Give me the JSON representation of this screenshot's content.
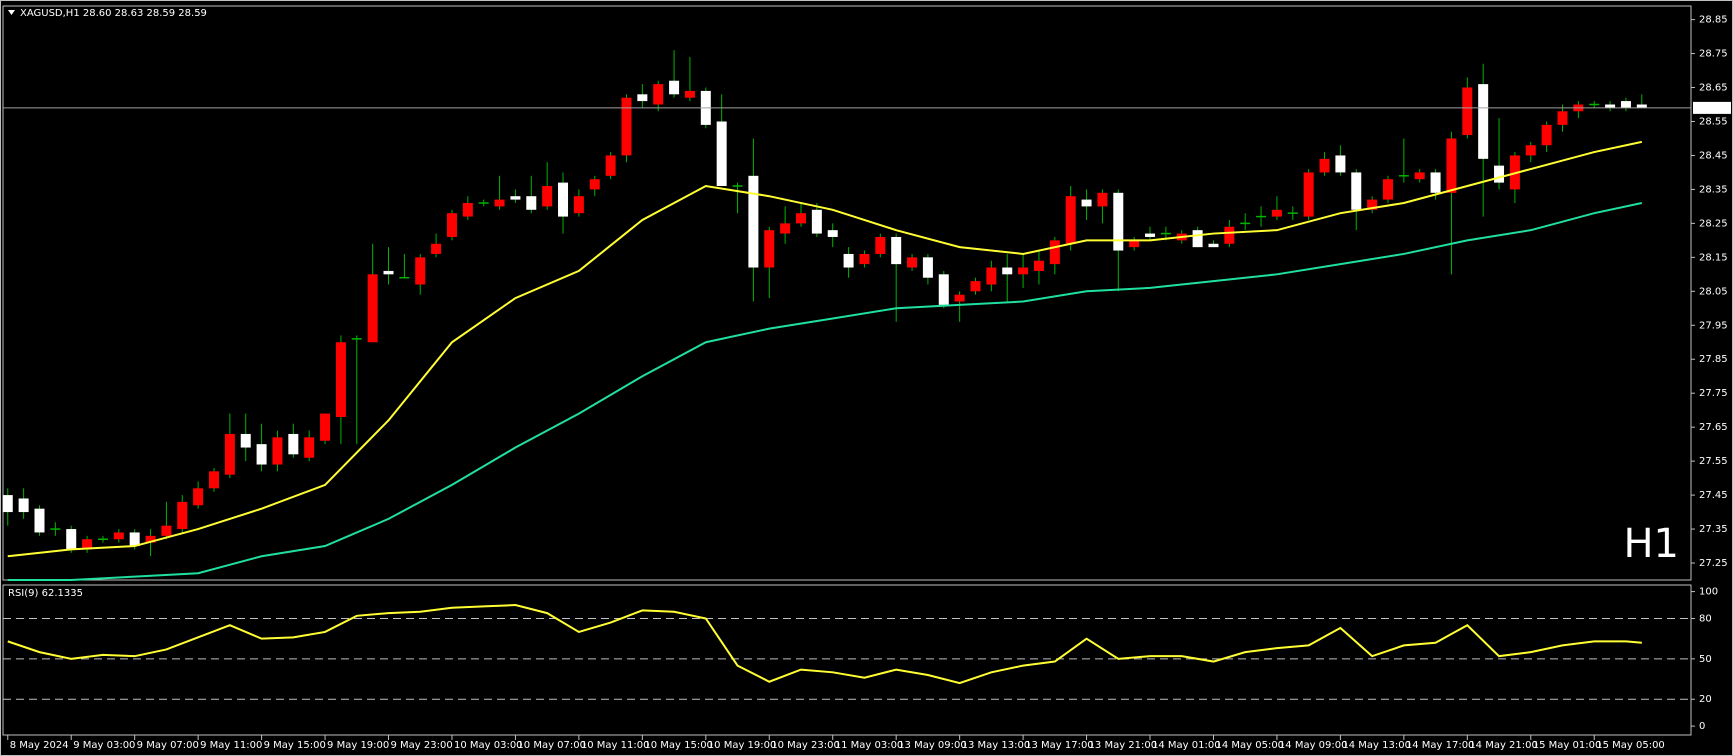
{
  "chart_data": [
    {
      "type": "candlestick",
      "title": "XAGUSD,H1  28.60 28.63 28.59 28.59",
      "watermark": "H1",
      "watermark_color": "#e00000",
      "up_color": "#ff0000",
      "down_color": "#ffffff",
      "wick_color": "#00b400",
      "ohlc": [
        [
          27.45,
          27.47,
          27.36,
          27.4
        ],
        [
          27.44,
          27.47,
          27.38,
          27.4
        ],
        [
          27.41,
          27.42,
          27.33,
          27.34
        ],
        [
          27.35,
          27.37,
          27.33,
          27.35
        ],
        [
          27.35,
          27.36,
          27.28,
          27.29
        ],
        [
          27.29,
          27.33,
          27.28,
          27.32
        ],
        [
          27.32,
          27.33,
          27.31,
          27.32
        ],
        [
          27.32,
          27.35,
          27.31,
          27.34
        ],
        [
          27.34,
          27.35,
          27.29,
          27.3
        ],
        [
          27.31,
          27.35,
          27.27,
          27.33
        ],
        [
          27.33,
          27.43,
          27.32,
          27.36
        ],
        [
          27.35,
          27.45,
          27.34,
          27.43
        ],
        [
          27.42,
          27.49,
          27.41,
          27.47
        ],
        [
          27.47,
          27.53,
          27.46,
          27.52
        ],
        [
          27.51,
          27.69,
          27.5,
          27.63
        ],
        [
          27.63,
          27.69,
          27.55,
          27.59
        ],
        [
          27.6,
          27.66,
          27.52,
          27.54
        ],
        [
          27.54,
          27.64,
          27.52,
          27.62
        ],
        [
          27.63,
          27.66,
          27.56,
          27.57
        ],
        [
          27.56,
          27.64,
          27.55,
          27.62
        ],
        [
          27.61,
          27.69,
          27.6,
          27.69
        ],
        [
          27.68,
          27.92,
          27.6,
          27.9
        ],
        [
          27.91,
          27.92,
          27.6,
          27.91
        ],
        [
          27.9,
          28.19,
          27.9,
          28.1
        ],
        [
          28.11,
          28.18,
          28.07,
          28.1
        ],
        [
          28.09,
          28.16,
          28.09,
          28.09
        ],
        [
          28.07,
          28.16,
          28.04,
          28.15
        ],
        [
          28.16,
          28.22,
          28.15,
          28.19
        ],
        [
          28.21,
          28.29,
          28.2,
          28.28
        ],
        [
          28.27,
          28.33,
          28.26,
          28.31
        ],
        [
          28.31,
          28.32,
          28.3,
          28.31
        ],
        [
          28.3,
          28.39,
          28.29,
          28.32
        ],
        [
          28.33,
          28.35,
          28.31,
          28.32
        ],
        [
          28.33,
          28.39,
          28.28,
          28.29
        ],
        [
          28.3,
          28.43,
          28.29,
          28.36
        ],
        [
          28.37,
          28.4,
          28.22,
          28.27
        ],
        [
          28.28,
          28.35,
          28.27,
          28.33
        ],
        [
          28.35,
          28.39,
          28.33,
          28.38
        ],
        [
          28.39,
          28.46,
          28.38,
          28.45
        ],
        [
          28.45,
          28.63,
          28.43,
          28.62
        ],
        [
          28.63,
          28.66,
          28.59,
          28.61
        ],
        [
          28.6,
          28.67,
          28.58,
          28.66
        ],
        [
          28.67,
          28.76,
          28.62,
          28.63
        ],
        [
          28.62,
          28.74,
          28.61,
          28.64
        ],
        [
          28.64,
          28.65,
          28.53,
          28.54
        ],
        [
          28.55,
          28.63,
          28.36,
          28.36
        ],
        [
          28.36,
          28.37,
          28.28,
          28.36
        ],
        [
          28.39,
          28.5,
          28.02,
          28.12
        ],
        [
          28.12,
          28.24,
          28.03,
          28.23
        ],
        [
          28.22,
          28.3,
          28.19,
          28.25
        ],
        [
          28.25,
          28.31,
          28.24,
          28.28
        ],
        [
          28.29,
          28.31,
          28.21,
          28.22
        ],
        [
          28.23,
          28.25,
          28.18,
          28.21
        ],
        [
          28.16,
          28.18,
          28.09,
          28.12
        ],
        [
          28.13,
          28.17,
          28.12,
          28.16
        ],
        [
          28.16,
          28.22,
          28.15,
          28.21
        ],
        [
          28.21,
          28.22,
          27.96,
          28.13
        ],
        [
          28.12,
          28.16,
          28.11,
          28.15
        ],
        [
          28.15,
          28.16,
          28.07,
          28.09
        ],
        [
          28.1,
          28.11,
          28.0,
          28.01
        ],
        [
          28.02,
          28.05,
          27.96,
          28.04
        ],
        [
          28.05,
          28.09,
          28.04,
          28.08
        ],
        [
          28.07,
          28.14,
          28.05,
          28.12
        ],
        [
          28.12,
          28.16,
          28.02,
          28.1
        ],
        [
          28.1,
          28.16,
          28.06,
          28.12
        ],
        [
          28.11,
          28.17,
          28.07,
          28.14
        ],
        [
          28.13,
          28.21,
          28.1,
          28.2
        ],
        [
          28.19,
          28.36,
          28.17,
          28.33
        ],
        [
          28.32,
          28.35,
          28.26,
          28.3
        ],
        [
          28.3,
          28.35,
          28.25,
          28.34
        ],
        [
          28.34,
          28.35,
          28.05,
          28.17
        ],
        [
          28.18,
          28.21,
          28.17,
          28.2
        ],
        [
          28.22,
          28.24,
          28.2,
          28.21
        ],
        [
          28.22,
          28.24,
          28.2,
          28.22
        ],
        [
          28.2,
          28.23,
          28.19,
          28.22
        ],
        [
          28.23,
          28.24,
          28.18,
          28.18
        ],
        [
          28.19,
          28.2,
          28.18,
          28.18
        ],
        [
          28.19,
          28.26,
          28.18,
          28.24
        ],
        [
          28.25,
          28.28,
          28.23,
          28.25
        ],
        [
          28.27,
          28.3,
          28.24,
          28.27
        ],
        [
          28.27,
          28.33,
          28.26,
          28.29
        ],
        [
          28.28,
          28.3,
          28.26,
          28.28
        ],
        [
          28.27,
          28.41,
          28.26,
          28.4
        ],
        [
          28.4,
          28.46,
          28.39,
          28.44
        ],
        [
          28.45,
          28.48,
          28.39,
          28.4
        ],
        [
          28.4,
          28.41,
          28.23,
          28.29
        ],
        [
          28.29,
          28.33,
          28.28,
          28.32
        ],
        [
          28.32,
          28.39,
          28.31,
          28.38
        ],
        [
          28.39,
          28.5,
          28.37,
          28.39
        ],
        [
          28.38,
          28.41,
          28.37,
          28.4
        ],
        [
          28.4,
          28.41,
          28.32,
          28.34
        ],
        [
          28.34,
          28.52,
          28.1,
          28.5
        ],
        [
          28.51,
          28.68,
          28.5,
          28.65
        ],
        [
          28.66,
          28.72,
          28.27,
          28.44
        ],
        [
          28.42,
          28.56,
          28.35,
          28.37
        ],
        [
          28.35,
          28.46,
          28.31,
          28.45
        ],
        [
          28.45,
          28.49,
          28.43,
          28.48
        ],
        [
          28.48,
          28.55,
          28.46,
          28.54
        ],
        [
          28.54,
          28.6,
          28.52,
          28.58
        ],
        [
          28.58,
          28.61,
          28.56,
          28.6
        ],
        [
          28.6,
          28.61,
          28.59,
          28.6
        ],
        [
          28.6,
          28.61,
          28.58,
          28.59
        ],
        [
          28.61,
          28.62,
          28.58,
          28.59
        ],
        [
          28.6,
          28.63,
          28.59,
          28.59
        ]
      ],
      "overlays": [
        {
          "color": "#ffff33",
          "x": [
            0,
            4,
            8,
            12,
            16,
            20,
            24,
            28,
            32,
            36,
            40,
            44,
            48,
            52,
            56,
            60,
            64,
            68,
            72,
            76,
            80,
            84,
            88,
            92,
            96,
            100,
            103
          ],
          "values": [
            27.27,
            27.29,
            27.3,
            27.35,
            27.41,
            27.48,
            27.67,
            27.9,
            28.03,
            28.11,
            28.26,
            28.36,
            28.33,
            28.29,
            28.23,
            28.18,
            28.16,
            28.2,
            28.2,
            28.22,
            28.23,
            28.28,
            28.31,
            28.36,
            28.41,
            28.46,
            28.49
          ]
        },
        {
          "color": "#20e0a0",
          "x": [
            0,
            4,
            8,
            12,
            16,
            20,
            24,
            28,
            32,
            36,
            40,
            44,
            48,
            52,
            56,
            60,
            64,
            68,
            72,
            76,
            80,
            84,
            88,
            92,
            96,
            100,
            103
          ],
          "values": [
            27.2,
            27.2,
            27.21,
            27.22,
            27.27,
            27.3,
            27.38,
            27.48,
            27.59,
            27.69,
            27.8,
            27.9,
            27.94,
            27.97,
            28.0,
            28.01,
            28.02,
            28.05,
            28.06,
            28.08,
            28.1,
            28.13,
            28.16,
            28.2,
            28.23,
            28.28,
            28.31
          ]
        }
      ],
      "current_price": 28.59,
      "xlim": [
        -0.3,
        106.1
      ],
      "ylim": [
        27.2,
        28.89
      ],
      "yticks": [
        28.85,
        28.75,
        28.65,
        28.55,
        28.45,
        28.35,
        28.25,
        28.15,
        28.05,
        27.95,
        27.85,
        27.75,
        27.65,
        27.55,
        27.45,
        27.35,
        27.25
      ],
      "xticks": [
        {
          "value": 0,
          "label": "8 May 2024"
        },
        {
          "value": 4,
          "label": "9 May 03:00"
        },
        {
          "value": 8,
          "label": "9 May 07:00"
        },
        {
          "value": 12,
          "label": "9 May 11:00"
        },
        {
          "value": 16,
          "label": "9 May 15:00"
        },
        {
          "value": 20,
          "label": "9 May 19:00"
        },
        {
          "value": 24,
          "label": "9 May 23:00"
        },
        {
          "value": 28,
          "label": "10 May 03:00"
        },
        {
          "value": 32,
          "label": "10 May 07:00"
        },
        {
          "value": 36,
          "label": "10 May 11:00"
        },
        {
          "value": 40,
          "label": "10 May 15:00"
        },
        {
          "value": 44,
          "label": "10 May 19:00"
        },
        {
          "value": 48,
          "label": "10 May 23:00"
        },
        {
          "value": 52,
          "label": "11 May 03:00"
        },
        {
          "value": 56,
          "label": "13 May 09:00"
        },
        {
          "value": 60,
          "label": "13 May 13:00"
        },
        {
          "value": 64,
          "label": "13 May 17:00"
        },
        {
          "value": 68,
          "label": "13 May 21:00"
        },
        {
          "value": 72,
          "label": "14 May 01:00"
        },
        {
          "value": 76,
          "label": "14 May 05:00"
        },
        {
          "value": 80,
          "label": "14 May 09:00"
        },
        {
          "value": 84,
          "label": "14 May 13:00"
        },
        {
          "value": 88,
          "label": "14 May 17:00"
        },
        {
          "value": 92,
          "label": "14 May 21:00"
        },
        {
          "value": 96,
          "label": "15 May 01:00"
        },
        {
          "value": 100,
          "label": "15 May 05:00"
        }
      ]
    },
    {
      "type": "line",
      "title": "RSI(9) 62.1335",
      "color": "#ffff33",
      "x": [
        0,
        2,
        4,
        6,
        8,
        10,
        12,
        14,
        16,
        18,
        20,
        22,
        24,
        26,
        28,
        30,
        32,
        34,
        36,
        38,
        40,
        42,
        44,
        46,
        48,
        50,
        52,
        54,
        56,
        58,
        60,
        62,
        64,
        66,
        68,
        70,
        72,
        74,
        76,
        78,
        80,
        82,
        84,
        86,
        88,
        90,
        92,
        94,
        96,
        98,
        100,
        102,
        103
      ],
      "values": [
        63,
        55,
        50,
        53,
        52,
        57,
        66,
        75,
        65,
        66,
        70,
        82,
        84,
        85,
        88,
        89,
        90,
        84,
        70,
        77,
        86,
        85,
        80,
        45,
        33,
        42,
        40,
        36,
        42,
        38,
        32,
        40,
        45,
        48,
        65,
        50,
        52,
        52,
        48,
        55,
        58,
        60,
        73,
        52,
        60,
        62,
        75,
        52,
        55,
        60,
        63,
        63,
        62
      ],
      "xlim": [
        -0.3,
        106.1
      ],
      "ylim": [
        -6.6,
        104.9
      ],
      "yticks": [
        100,
        80,
        50,
        20,
        0
      ],
      "levels": [
        80,
        50,
        20
      ]
    }
  ]
}
